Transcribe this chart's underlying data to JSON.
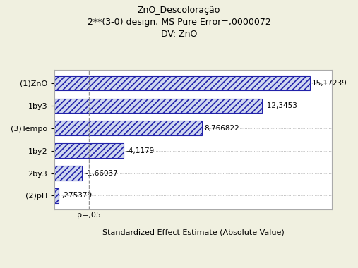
{
  "title_line1": "ZnO_Descoloração",
  "title_line2": "2**(3-0) design; MS Pure Error=,0000072",
  "title_line3": "DV: ZnO",
  "xlabel": "Standardized Effect Estimate (Absolute Value)",
  "p_label": "p=,05",
  "categories": [
    "(1)ZnO",
    "1by3",
    "(3)Tempo",
    "1by2",
    "2by3",
    "(2)pH"
  ],
  "values": [
    15.17239,
    12.3453,
    8.766822,
    4.1179,
    1.66037,
    0.275379
  ],
  "value_labels": [
    "15,17239",
    "-12,3453",
    "8,766822",
    "-4,1179",
    "-1,66037",
    ",275379"
  ],
  "p_line": 2.069,
  "bar_facecolor": "#d0d8f0",
  "bar_edgecolor": "#2222aa",
  "hatch": "////",
  "hatch_color": "#2222aa",
  "background_color": "#f0f0e0",
  "plot_bg": "#ffffff",
  "dashed_line_color": "#888888",
  "xlim_max": 16.5,
  "bar_height": 0.65,
  "title_fontsize": 9,
  "label_fontsize": 8,
  "tick_fontsize": 8,
  "value_label_fontsize": 7.5
}
